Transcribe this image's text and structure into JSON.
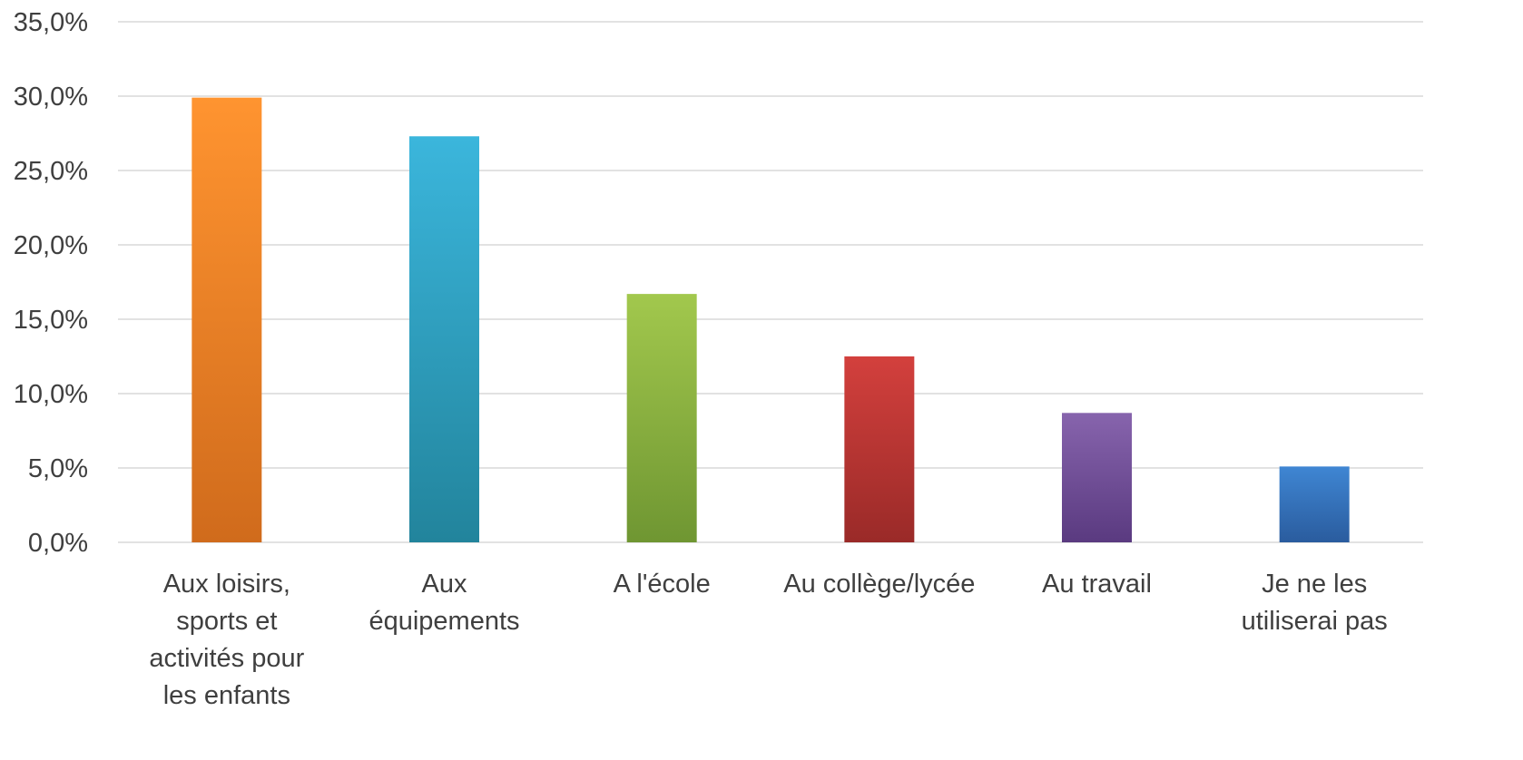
{
  "chart_data": {
    "type": "bar",
    "categories": [
      [
        "Aux loisirs,",
        "sports et",
        "activités pour",
        "les enfants"
      ],
      [
        "Aux",
        "équipements"
      ],
      [
        "A l'école"
      ],
      [
        "Au collège/lycée"
      ],
      [
        "Au travail"
      ],
      [
        "Je ne les",
        "utiliserai pas"
      ]
    ],
    "values": [
      29.9,
      27.3,
      16.7,
      12.5,
      8.7,
      5.1
    ],
    "ylim": [
      0,
      35
    ],
    "ytick_values": [
      0,
      5,
      10,
      15,
      20,
      25,
      30,
      35
    ],
    "ytick_labels": [
      "0,0%",
      "5,0%",
      "10,0%",
      "15,0%",
      "20,0%",
      "25,0%",
      "30,0%",
      "35,0%"
    ],
    "grid": true,
    "legend": "none",
    "bar_colors": [
      [
        "#ff9430",
        "#d06b1c"
      ],
      [
        "#3bb6dc",
        "#22849c"
      ],
      [
        "#a2c84d",
        "#6f9632"
      ],
      [
        "#d3403d",
        "#9a2a28"
      ],
      [
        "#8764ad",
        "#5a3a80"
      ],
      [
        "#3f86d3",
        "#2a5c9e"
      ]
    ]
  }
}
